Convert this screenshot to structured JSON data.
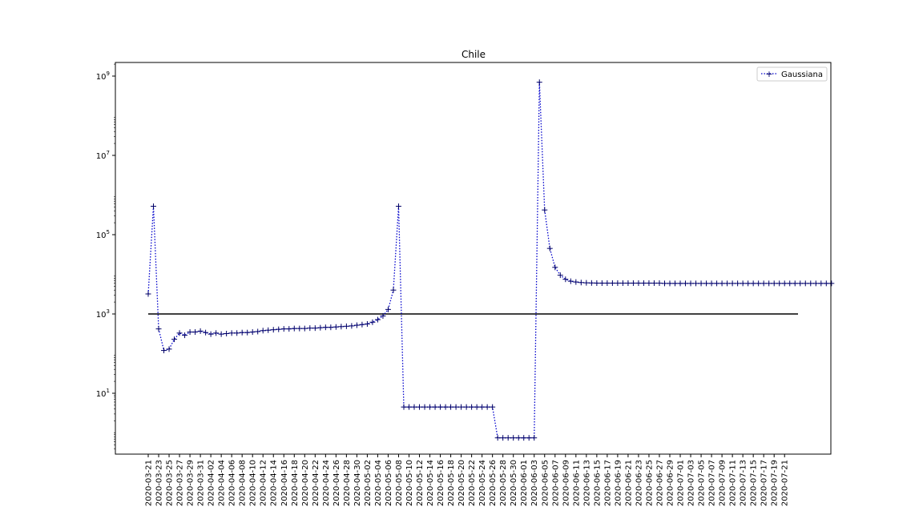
{
  "chart_data": {
    "type": "line",
    "title": "Chile",
    "xlabel": "",
    "ylabel": "",
    "yscale": "log",
    "ylim": [
      0.35,
      2000000000
    ],
    "grid": false,
    "legend_placement": "top-right",
    "x_tick_labels": [
      "2020-03-21",
      "2020-03-23",
      "2020-03-25",
      "2020-03-27",
      "2020-03-29",
      "2020-03-31",
      "2020-04-02",
      "2020-04-04",
      "2020-04-06",
      "2020-04-08",
      "2020-04-10",
      "2020-04-12",
      "2020-04-14",
      "2020-04-16",
      "2020-04-18",
      "2020-04-20",
      "2020-04-22",
      "2020-04-24",
      "2020-04-26",
      "2020-04-28",
      "2020-04-30",
      "2020-05-02",
      "2020-05-04",
      "2020-05-06",
      "2020-05-08",
      "2020-05-10",
      "2020-05-12",
      "2020-05-14",
      "2020-05-16",
      "2020-05-18",
      "2020-05-20",
      "2020-05-22",
      "2020-05-24",
      "2020-05-26",
      "2020-05-28",
      "2020-05-30",
      "2020-06-01",
      "2020-06-03",
      "2020-06-05",
      "2020-06-07",
      "2020-06-09",
      "2020-06-11",
      "2020-06-13",
      "2020-06-15",
      "2020-06-17",
      "2020-06-19",
      "2020-06-21",
      "2020-06-23",
      "2020-06-25",
      "2020-06-27",
      "2020-06-29",
      "2020-07-01",
      "2020-07-03",
      "2020-07-05",
      "2020-07-07",
      "2020-07-09",
      "2020-07-11",
      "2020-07-13",
      "2020-07-15",
      "2020-07-17",
      "2020-07-19",
      "2020-07-21"
    ],
    "y_tick_labels": [
      {
        "value": 10,
        "base": "10",
        "exp": "1"
      },
      {
        "value": 1000,
        "base": "10",
        "exp": "3"
      },
      {
        "value": 100000,
        "base": "10",
        "exp": "5"
      },
      {
        "value": 10000000,
        "base": "10",
        "exp": "7"
      },
      {
        "value": 1000000000,
        "base": "10",
        "exp": "9"
      }
    ],
    "series": [
      {
        "name": "Gaussiana",
        "color": "#0000cc",
        "marker": "+",
        "linestyle": "dotted",
        "start_date": "2020-03-21",
        "values": [
          3200,
          520000,
          420,
          120,
          130,
          230,
          330,
          290,
          350,
          350,
          370,
          340,
          310,
          330,
          310,
          320,
          330,
          330,
          340,
          340,
          350,
          360,
          380,
          390,
          400,
          410,
          420,
          420,
          430,
          430,
          430,
          440,
          440,
          450,
          460,
          460,
          470,
          480,
          490,
          500,
          520,
          540,
          560,
          620,
          720,
          890,
          1300,
          4000,
          520000,
          4.5,
          4.5,
          4.5,
          4.5,
          4.5,
          4.5,
          4.5,
          4.5,
          4.5,
          4.5,
          4.5,
          4.5,
          4.5,
          4.5,
          4.5,
          4.5,
          4.5,
          4.5,
          0.75,
          0.75,
          0.75,
          0.75,
          0.75,
          0.75,
          0.75,
          0.75,
          700000000,
          420000,
          45000,
          15000,
          9500,
          7500,
          6700,
          6400,
          6200,
          6100,
          6050,
          6000,
          6000,
          6000,
          6000,
          6000,
          6000,
          6000,
          6000,
          6000,
          6000,
          6000,
          6000,
          6000,
          5900,
          5900,
          5900,
          5900,
          5900,
          5900,
          5900,
          5900,
          5900,
          5900,
          5900,
          5900,
          5900,
          5900,
          5900,
          5900,
          5900,
          5900,
          5900,
          5900,
          5900,
          5900,
          5900,
          5900,
          5900,
          5900,
          5900,
          5900,
          5900,
          5900,
          5900,
          5900,
          5900
        ]
      },
      {
        "name": "",
        "color": "#000000",
        "linestyle": "solid",
        "constant_value": 1000
      }
    ]
  }
}
